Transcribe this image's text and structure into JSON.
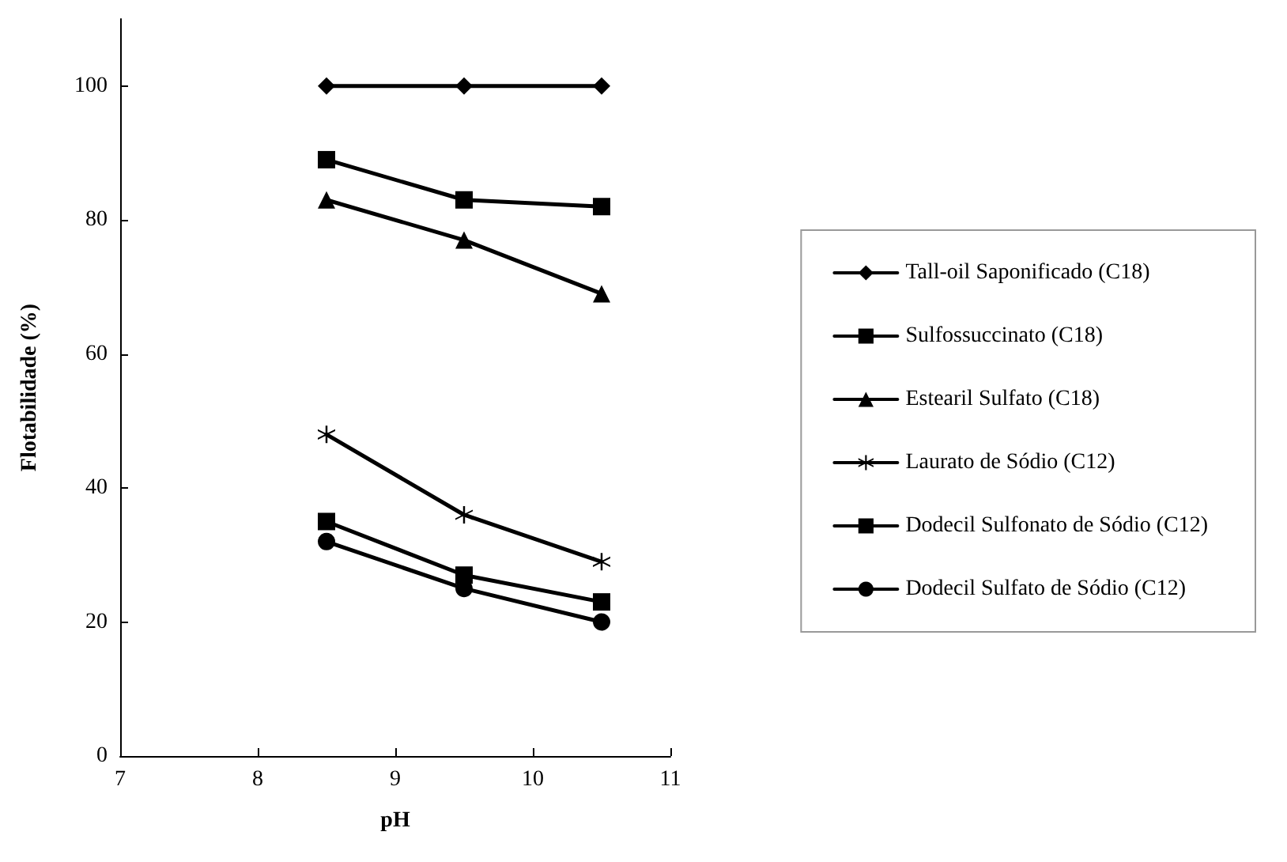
{
  "chart_data": {
    "type": "line",
    "xlabel": "pH",
    "ylabel": "Flotabilidade (%)",
    "xlim": [
      7,
      11
    ],
    "xticks": [
      7,
      8,
      9,
      10,
      11
    ],
    "ylim": [
      0,
      110
    ],
    "yticks": [
      0,
      20,
      40,
      60,
      80,
      100
    ],
    "grid": false,
    "legend": "right",
    "line_style": "solid",
    "series": [
      {
        "name": "Tall-oil Saponificado (C18)",
        "color": "#000000",
        "marker": "diamond",
        "x": [
          8.5,
          9.5,
          10.5
        ],
        "values": [
          100,
          100,
          100
        ]
      },
      {
        "name": "Sulfossuccinato (C18)",
        "color": "#000000",
        "marker": "square",
        "x": [
          8.5,
          9.5,
          10.5
        ],
        "values": [
          89,
          83,
          82
        ]
      },
      {
        "name": "Estearil Sulfato (C18)",
        "color": "#000000",
        "marker": "triangle",
        "x": [
          8.5,
          9.5,
          10.5
        ],
        "values": [
          83,
          77,
          69
        ]
      },
      {
        "name": "Laurato de Sódio (C12)",
        "color": "#000000",
        "marker": "cross",
        "x": [
          8.5,
          9.5,
          10.5
        ],
        "values": [
          48,
          36,
          29
        ]
      },
      {
        "name": "Dodecil Sulfonato de Sódio (C12)",
        "color": "#000000",
        "marker": "square",
        "x": [
          8.5,
          9.5,
          10.5
        ],
        "values": [
          35,
          27,
          23
        ]
      },
      {
        "name": "Dodecil Sulfato de Sódio (C12)",
        "color": "#000000",
        "marker": "circle",
        "x": [
          8.5,
          9.5,
          10.5
        ],
        "values": [
          32,
          25,
          20
        ]
      }
    ]
  }
}
